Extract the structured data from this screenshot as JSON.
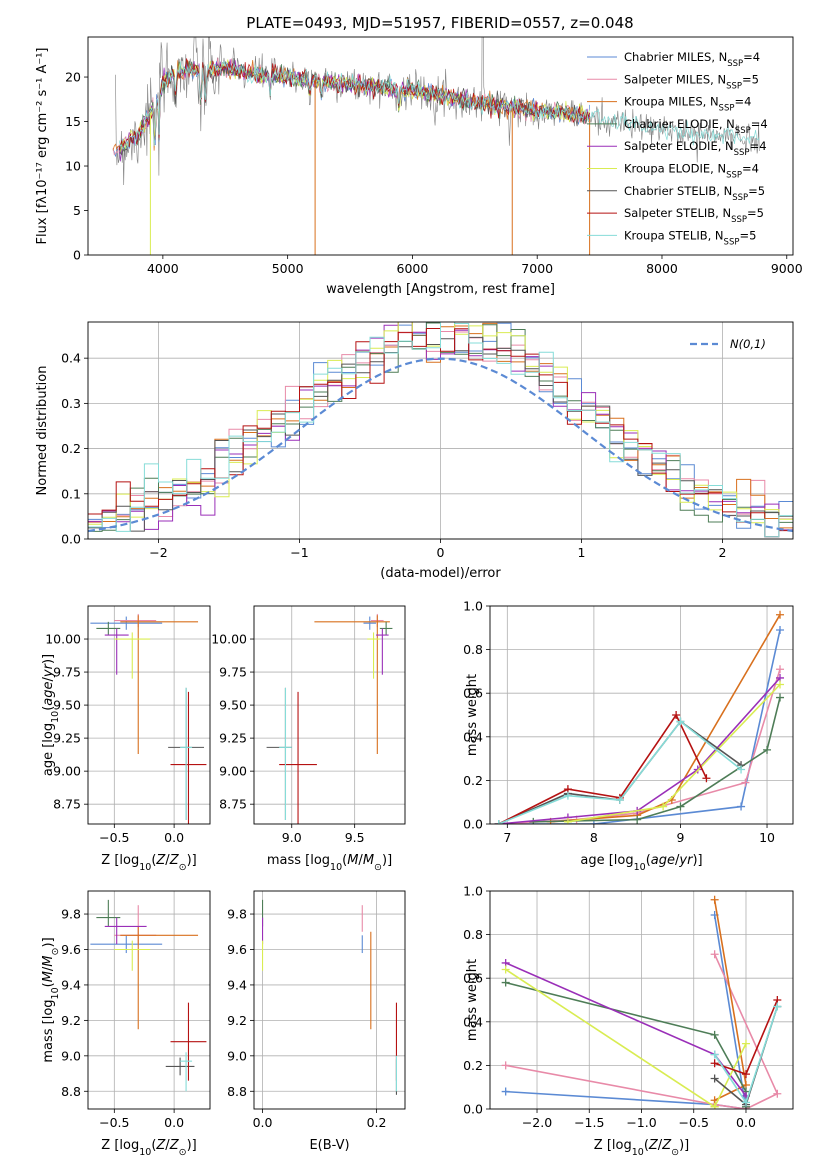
{
  "figure_title": "PLATE=0493, MJD=51957, FIBERID=0557, z=0.048",
  "colors": {
    "chabrier_miles": "#5b8ad4",
    "salpeter_miles": "#e88aa8",
    "kroupa_miles": "#d8701e",
    "chabrier_elodie": "#4e7d57",
    "salpeter_elodie": "#9a2fb8",
    "kroupa_elodie": "#d9ec52",
    "chabrier_stelib": "#555555",
    "salpeter_stelib": "#b51212",
    "kroupa_stelib": "#86dcd8"
  },
  "legend_models": [
    {
      "key": "chabrier_miles",
      "label": "Chabrier MILES, N",
      "sub": "SSP",
      "tail": "=4"
    },
    {
      "key": "salpeter_miles",
      "label": "Salpeter MILES, N",
      "sub": "SSP",
      "tail": "=5"
    },
    {
      "key": "kroupa_miles",
      "label": "Kroupa MILES, N",
      "sub": "SSP",
      "tail": "=4"
    },
    {
      "key": "chabrier_elodie",
      "label": "Chabrier ELODIE, N",
      "sub": "SSP",
      "tail": "=4"
    },
    {
      "key": "salpeter_elodie",
      "label": "Salpeter ELODIE, N",
      "sub": "SSP",
      "tail": "=4"
    },
    {
      "key": "kroupa_elodie",
      "label": "Kroupa ELODIE, N",
      "sub": "SSP",
      "tail": "=4"
    },
    {
      "key": "chabrier_stelib",
      "label": "Chabrier STELIB, N",
      "sub": "SSP",
      "tail": "=5"
    },
    {
      "key": "salpeter_stelib",
      "label": "Salpeter STELIB, N",
      "sub": "SSP",
      "tail": "=5"
    },
    {
      "key": "kroupa_stelib",
      "label": "Kroupa STELIB, N",
      "sub": "SSP",
      "tail": "=5"
    }
  ],
  "chart_data": [
    {
      "id": "spectrum",
      "type": "line",
      "xlabel": "wavelength [Angstrom, rest frame]",
      "ylabel": "Flux [fλ10⁻¹⁷ erg cm⁻² s⁻¹ A⁻¹]",
      "xlim": [
        3400,
        9050
      ],
      "ylim": [
        0,
        24.5
      ],
      "xticks": [
        4000,
        5000,
        6000,
        7000,
        8000,
        9000
      ],
      "yticks": [
        0,
        5,
        10,
        15,
        20
      ],
      "continuum": {
        "x": [
          3600,
          3700,
          3800,
          3900,
          4000,
          4100,
          4200,
          4300,
          4500,
          4700,
          5000,
          5300,
          5600,
          6000,
          6400,
          6800,
          7200,
          7400,
          7600,
          8000,
          8400,
          8800
        ],
        "y": [
          11.5,
          12.5,
          13.5,
          16,
          19.5,
          20.5,
          21,
          20.5,
          21,
          20.5,
          20,
          19.5,
          19,
          18.5,
          17.5,
          16.5,
          16,
          15.5,
          15,
          14,
          13.5,
          13
        ]
      }
    },
    {
      "id": "residuals",
      "type": "step",
      "xlabel": "(data-model)/error",
      "ylabel": "Normed distribution",
      "xlim": [
        -2.5,
        2.5
      ],
      "ylim": [
        0,
        0.48
      ],
      "xticks": [
        -2,
        -1,
        0,
        1,
        2
      ],
      "yticks": [
        0.0,
        0.1,
        0.2,
        0.3,
        0.4
      ],
      "legend": "N(0,1)",
      "legend_loc": "upper right"
    },
    {
      "id": "age_vs_Z",
      "type": "errorbar",
      "xlabel": "Z [log10(Z/Z⊙)]",
      "ylabel": "age [log10(age/yr)]",
      "xlim": [
        -0.72,
        0.3
      ],
      "ylim": [
        8.6,
        10.25
      ],
      "xticks": [
        -0.5,
        0.0
      ],
      "xtick_labels": [
        "−0.5",
        "0.0"
      ],
      "yticks": [
        8.75,
        9.0,
        9.25,
        9.5,
        9.75,
        10.0
      ],
      "points": [
        {
          "model": "chabrier_miles",
          "x": -0.4,
          "y": 10.12,
          "xerr": [
            0.3,
            0.3
          ],
          "yerr": [
            0.05,
            0.05
          ]
        },
        {
          "model": "salpeter_miles",
          "x": -0.3,
          "y": 10.14,
          "xerr": [
            0.2,
            0.15
          ],
          "yerr": [
            0.05,
            0.05
          ]
        },
        {
          "model": "kroupa_miles",
          "x": -0.3,
          "y": 10.13,
          "xerr": [
            0.15,
            0.5
          ],
          "yerr": [
            1.0,
            0.05
          ]
        },
        {
          "model": "chabrier_elodie",
          "x": -0.55,
          "y": 10.08,
          "xerr": [
            0.1,
            0.1
          ],
          "yerr": [
            0.05,
            0.05
          ]
        },
        {
          "model": "salpeter_elodie",
          "x": -0.48,
          "y": 10.03,
          "xerr": [
            0.1,
            0.1
          ],
          "yerr": [
            0.3,
            0.05
          ]
        },
        {
          "model": "kroupa_elodie",
          "x": -0.35,
          "y": 10.0,
          "xerr": [
            0.15,
            0.15
          ],
          "yerr": [
            0.3,
            0.05
          ]
        },
        {
          "model": "chabrier_stelib",
          "x": 0.1,
          "y": 9.18,
          "xerr": [
            0.15,
            0.15
          ],
          "yerr": [
            0.55,
            0.45
          ]
        },
        {
          "model": "salpeter_stelib",
          "x": 0.12,
          "y": 9.05,
          "xerr": [
            0.15,
            0.15
          ],
          "yerr": [
            0.45,
            0.55
          ]
        },
        {
          "model": "kroupa_stelib",
          "x": 0.1,
          "y": 9.18,
          "xerr": [
            0.05,
            0.05
          ],
          "yerr": [
            0.55,
            0.45
          ]
        }
      ]
    },
    {
      "id": "age_vs_mass",
      "type": "errorbar",
      "xlabel": "mass [log10(M/M⊙)]",
      "ylabel": "",
      "xlim": [
        8.7,
        9.9
      ],
      "ylim": [
        8.6,
        10.25
      ],
      "xticks": [
        9.0,
        9.5
      ],
      "xtick_labels": [
        "9.0",
        "9.5"
      ],
      "yticks": [
        8.75,
        9.0,
        9.25,
        9.5,
        9.75,
        10.0
      ],
      "points": [
        {
          "model": "chabrier_miles",
          "x": 9.62,
          "y": 10.12,
          "xerr": [
            0.05,
            0.05
          ],
          "yerr": [
            0.05,
            0.05
          ]
        },
        {
          "model": "salpeter_miles",
          "x": 9.68,
          "y": 10.14,
          "xerr": [
            0.05,
            0.05
          ],
          "yerr": [
            0.05,
            0.05
          ]
        },
        {
          "model": "kroupa_miles",
          "x": 9.68,
          "y": 10.13,
          "xerr": [
            0.5,
            0.1
          ],
          "yerr": [
            1.0,
            0.05
          ]
        },
        {
          "model": "chabrier_elodie",
          "x": 9.75,
          "y": 10.08,
          "xerr": [
            0.05,
            0.05
          ],
          "yerr": [
            0.05,
            0.05
          ]
        },
        {
          "model": "salpeter_elodie",
          "x": 9.72,
          "y": 10.03,
          "xerr": [
            0.05,
            0.05
          ],
          "yerr": [
            0.3,
            0.05
          ]
        },
        {
          "model": "kroupa_elodie",
          "x": 9.65,
          "y": 10.0,
          "xerr": [
            0.05,
            0.05
          ],
          "yerr": [
            0.3,
            0.05
          ]
        },
        {
          "model": "chabrier_stelib",
          "x": 8.95,
          "y": 9.18,
          "xerr": [
            0.15,
            0.05
          ],
          "yerr": [
            0.55,
            0.45
          ]
        },
        {
          "model": "salpeter_stelib",
          "x": 9.05,
          "y": 9.05,
          "xerr": [
            0.15,
            0.15
          ],
          "yerr": [
            0.45,
            0.55
          ]
        },
        {
          "model": "kroupa_stelib",
          "x": 8.95,
          "y": 9.18,
          "xerr": [
            0.05,
            0.05
          ],
          "yerr": [
            0.55,
            0.45
          ]
        }
      ]
    },
    {
      "id": "weight_vs_age",
      "type": "line",
      "xlabel": "age [log10(age/yr)]",
      "ylabel": "mass weight",
      "xlim": [
        6.8,
        10.3
      ],
      "ylim": [
        0,
        1
      ],
      "xticks": [
        7,
        8,
        9,
        10
      ],
      "yticks": [
        0.0,
        0.2,
        0.4,
        0.6,
        0.8,
        1.0
      ],
      "series": [
        {
          "model": "chabrier_miles",
          "x": [
            6.9,
            8.0,
            9.7,
            10.15
          ],
          "y": [
            0.0,
            0.0,
            0.08,
            0.89
          ]
        },
        {
          "model": "salpeter_miles",
          "x": [
            6.9,
            7.8,
            8.5,
            9.75,
            10.15
          ],
          "y": [
            0.0,
            0.02,
            0.05,
            0.19,
            0.71
          ]
        },
        {
          "model": "kroupa_miles",
          "x": [
            7.5,
            8.5,
            8.9,
            10.15
          ],
          "y": [
            0.01,
            0.04,
            0.11,
            0.96
          ]
        },
        {
          "model": "chabrier_elodie",
          "x": [
            7.3,
            8.5,
            9.0,
            10.0,
            10.15
          ],
          "y": [
            0.01,
            0.02,
            0.08,
            0.34,
            0.58
          ]
        },
        {
          "model": "salpeter_elodie",
          "x": [
            6.9,
            7.7,
            8.5,
            9.2,
            10.15
          ],
          "y": [
            0.0,
            0.03,
            0.06,
            0.25,
            0.67
          ]
        },
        {
          "model": "kroupa_elodie",
          "x": [
            7.7,
            8.8,
            10.15
          ],
          "y": [
            0.01,
            0.08,
            0.64
          ]
        },
        {
          "model": "chabrier_stelib",
          "x": [
            6.9,
            7.7,
            8.3,
            9.0,
            9.7
          ],
          "y": [
            0.0,
            0.14,
            0.11,
            0.47,
            0.27
          ]
        },
        {
          "model": "salpeter_stelib",
          "x": [
            6.9,
            7.7,
            8.3,
            8.95,
            9.3
          ],
          "y": [
            0.0,
            0.16,
            0.12,
            0.5,
            0.21
          ]
        },
        {
          "model": "kroupa_stelib",
          "x": [
            6.9,
            7.7,
            8.3,
            9.0,
            9.7
          ],
          "y": [
            0.0,
            0.13,
            0.11,
            0.47,
            0.25
          ]
        }
      ]
    },
    {
      "id": "mass_vs_Z",
      "type": "errorbar",
      "xlabel": "Z [log10(Z/Z⊙)]",
      "ylabel": "mass [log10(M/M⊙)]",
      "xlim": [
        -0.72,
        0.3
      ],
      "ylim": [
        8.7,
        9.93
      ],
      "xticks": [
        -0.5,
        0.0
      ],
      "xtick_labels": [
        "−0.5",
        "0.0"
      ],
      "yticks": [
        8.8,
        9.0,
        9.2,
        9.4,
        9.6,
        9.8
      ],
      "points": [
        {
          "model": "chabrier_miles",
          "x": -0.4,
          "y": 9.63,
          "xerr": [
            0.3,
            0.3
          ],
          "yerr": [
            0.05,
            0.05
          ]
        },
        {
          "model": "salpeter_miles",
          "x": -0.3,
          "y": 9.68,
          "xerr": [
            0.2,
            0.15
          ],
          "yerr": [
            0.05,
            0.17
          ]
        },
        {
          "model": "kroupa_miles",
          "x": -0.3,
          "y": 9.68,
          "xerr": [
            0.15,
            0.5
          ],
          "yerr": [
            0.53,
            0.05
          ]
        },
        {
          "model": "chabrier_elodie",
          "x": -0.55,
          "y": 9.78,
          "xerr": [
            0.1,
            0.1
          ],
          "yerr": [
            0.05,
            0.1
          ]
        },
        {
          "model": "salpeter_elodie",
          "x": -0.48,
          "y": 9.73,
          "xerr": [
            0.1,
            0.25
          ],
          "yerr": [
            0.1,
            0.05
          ]
        },
        {
          "model": "kroupa_elodie",
          "x": -0.35,
          "y": 9.6,
          "xerr": [
            0.15,
            0.15
          ],
          "yerr": [
            0.12,
            0.05
          ]
        },
        {
          "model": "chabrier_stelib",
          "x": 0.05,
          "y": 8.94,
          "xerr": [
            0.12,
            0.12
          ],
          "yerr": [
            0.05,
            0.05
          ]
        },
        {
          "model": "salpeter_stelib",
          "x": 0.12,
          "y": 9.08,
          "xerr": [
            0.15,
            0.15
          ],
          "yerr": [
            0.22,
            0.22
          ]
        },
        {
          "model": "kroupa_stelib",
          "x": 0.1,
          "y": 8.97,
          "xerr": [
            0.05,
            0.05
          ],
          "yerr": [
            0.17,
            0.05
          ]
        }
      ]
    },
    {
      "id": "mass_vs_ebv",
      "type": "errorbar",
      "xlabel": "E(B-V)",
      "ylabel": "",
      "xlim": [
        -0.015,
        0.25
      ],
      "ylim": [
        8.7,
        9.93
      ],
      "xticks": [
        0.0,
        0.2
      ],
      "xtick_labels": [
        "0.0",
        "0.2"
      ],
      "yticks": [
        8.8,
        9.0,
        9.2,
        9.4,
        9.6,
        9.8
      ],
      "points": [
        {
          "model": "chabrier_miles",
          "x": 0.175,
          "y": 9.63,
          "xerr": [
            0,
            0
          ],
          "yerr": [
            0.05,
            0.05
          ]
        },
        {
          "model": "salpeter_miles",
          "x": 0.175,
          "y": 9.75,
          "xerr": [
            0,
            0
          ],
          "yerr": [
            0.05,
            0.1
          ]
        },
        {
          "model": "kroupa_miles",
          "x": 0.19,
          "y": 9.6,
          "xerr": [
            0,
            0
          ],
          "yerr": [
            0.45,
            0.1
          ]
        },
        {
          "model": "chabrier_elodie",
          "x": 0.0,
          "y": 9.78,
          "xerr": [
            0,
            0
          ],
          "yerr": [
            0.05,
            0.1
          ]
        },
        {
          "model": "salpeter_elodie",
          "x": 0.0,
          "y": 9.73,
          "xerr": [
            0,
            0
          ],
          "yerr": [
            0.1,
            0.05
          ]
        },
        {
          "model": "kroupa_elodie",
          "x": 0.0,
          "y": 9.6,
          "xerr": [
            0,
            0
          ],
          "yerr": [
            0.12,
            0.05
          ]
        },
        {
          "model": "chabrier_stelib",
          "x": 0.235,
          "y": 8.88,
          "xerr": [
            0,
            0
          ],
          "yerr": [
            0.1,
            0.1
          ]
        },
        {
          "model": "salpeter_stelib",
          "x": 0.235,
          "y": 9.08,
          "xerr": [
            0,
            0
          ],
          "yerr": [
            0.22,
            0.22
          ]
        },
        {
          "model": "kroupa_stelib",
          "x": 0.235,
          "y": 8.95,
          "xerr": [
            0,
            0
          ],
          "yerr": [
            0.15,
            0.05
          ]
        }
      ]
    },
    {
      "id": "weight_vs_Z",
      "type": "line",
      "xlabel": "Z [log10(Z/Z⊙)]",
      "ylabel": "mass weight",
      "xlim": [
        -2.45,
        0.45
      ],
      "ylim": [
        0,
        1
      ],
      "xticks": [
        -2.0,
        -1.5,
        -1.0,
        -0.5,
        0.0
      ],
      "yticks": [
        0.0,
        0.2,
        0.4,
        0.6,
        0.8,
        1.0
      ],
      "series": [
        {
          "model": "chabrier_miles",
          "x": [
            -2.3,
            -0.3,
            0.0,
            -0.3
          ],
          "y": [
            0.08,
            0.02,
            0.0,
            0.89
          ]
        },
        {
          "model": "salpeter_miles",
          "x": [
            -2.3,
            -0.3,
            0.0,
            0.3,
            -0.3
          ],
          "y": [
            0.2,
            0.02,
            0.0,
            0.07,
            0.71
          ]
        },
        {
          "model": "kroupa_miles",
          "x": [
            -0.3,
            -0.3,
            0.0,
            -0.3
          ],
          "y": [
            0.01,
            0.04,
            0.11,
            0.96
          ]
        },
        {
          "model": "chabrier_elodie",
          "x": [
            -2.3,
            -0.3,
            0.0,
            0.0
          ],
          "y": [
            0.58,
            0.34,
            0.08,
            0.01
          ]
        },
        {
          "model": "salpeter_elodie",
          "x": [
            -2.3,
            -0.3,
            0.0
          ],
          "y": [
            0.67,
            0.25,
            0.06
          ]
        },
        {
          "model": "kroupa_elodie",
          "x": [
            -2.3,
            -0.3,
            0.0
          ],
          "y": [
            0.64,
            0.01,
            0.3
          ]
        },
        {
          "model": "chabrier_stelib",
          "x": [
            -0.3,
            0.0,
            0.3
          ],
          "y": [
            0.14,
            0.02,
            0.47
          ]
        },
        {
          "model": "salpeter_stelib",
          "x": [
            -0.3,
            0.0,
            0.3
          ],
          "y": [
            0.21,
            0.16,
            0.5
          ]
        },
        {
          "model": "kroupa_stelib",
          "x": [
            -0.3,
            0.0,
            0.3
          ],
          "y": [
            0.25,
            0.03,
            0.47
          ]
        }
      ]
    }
  ]
}
